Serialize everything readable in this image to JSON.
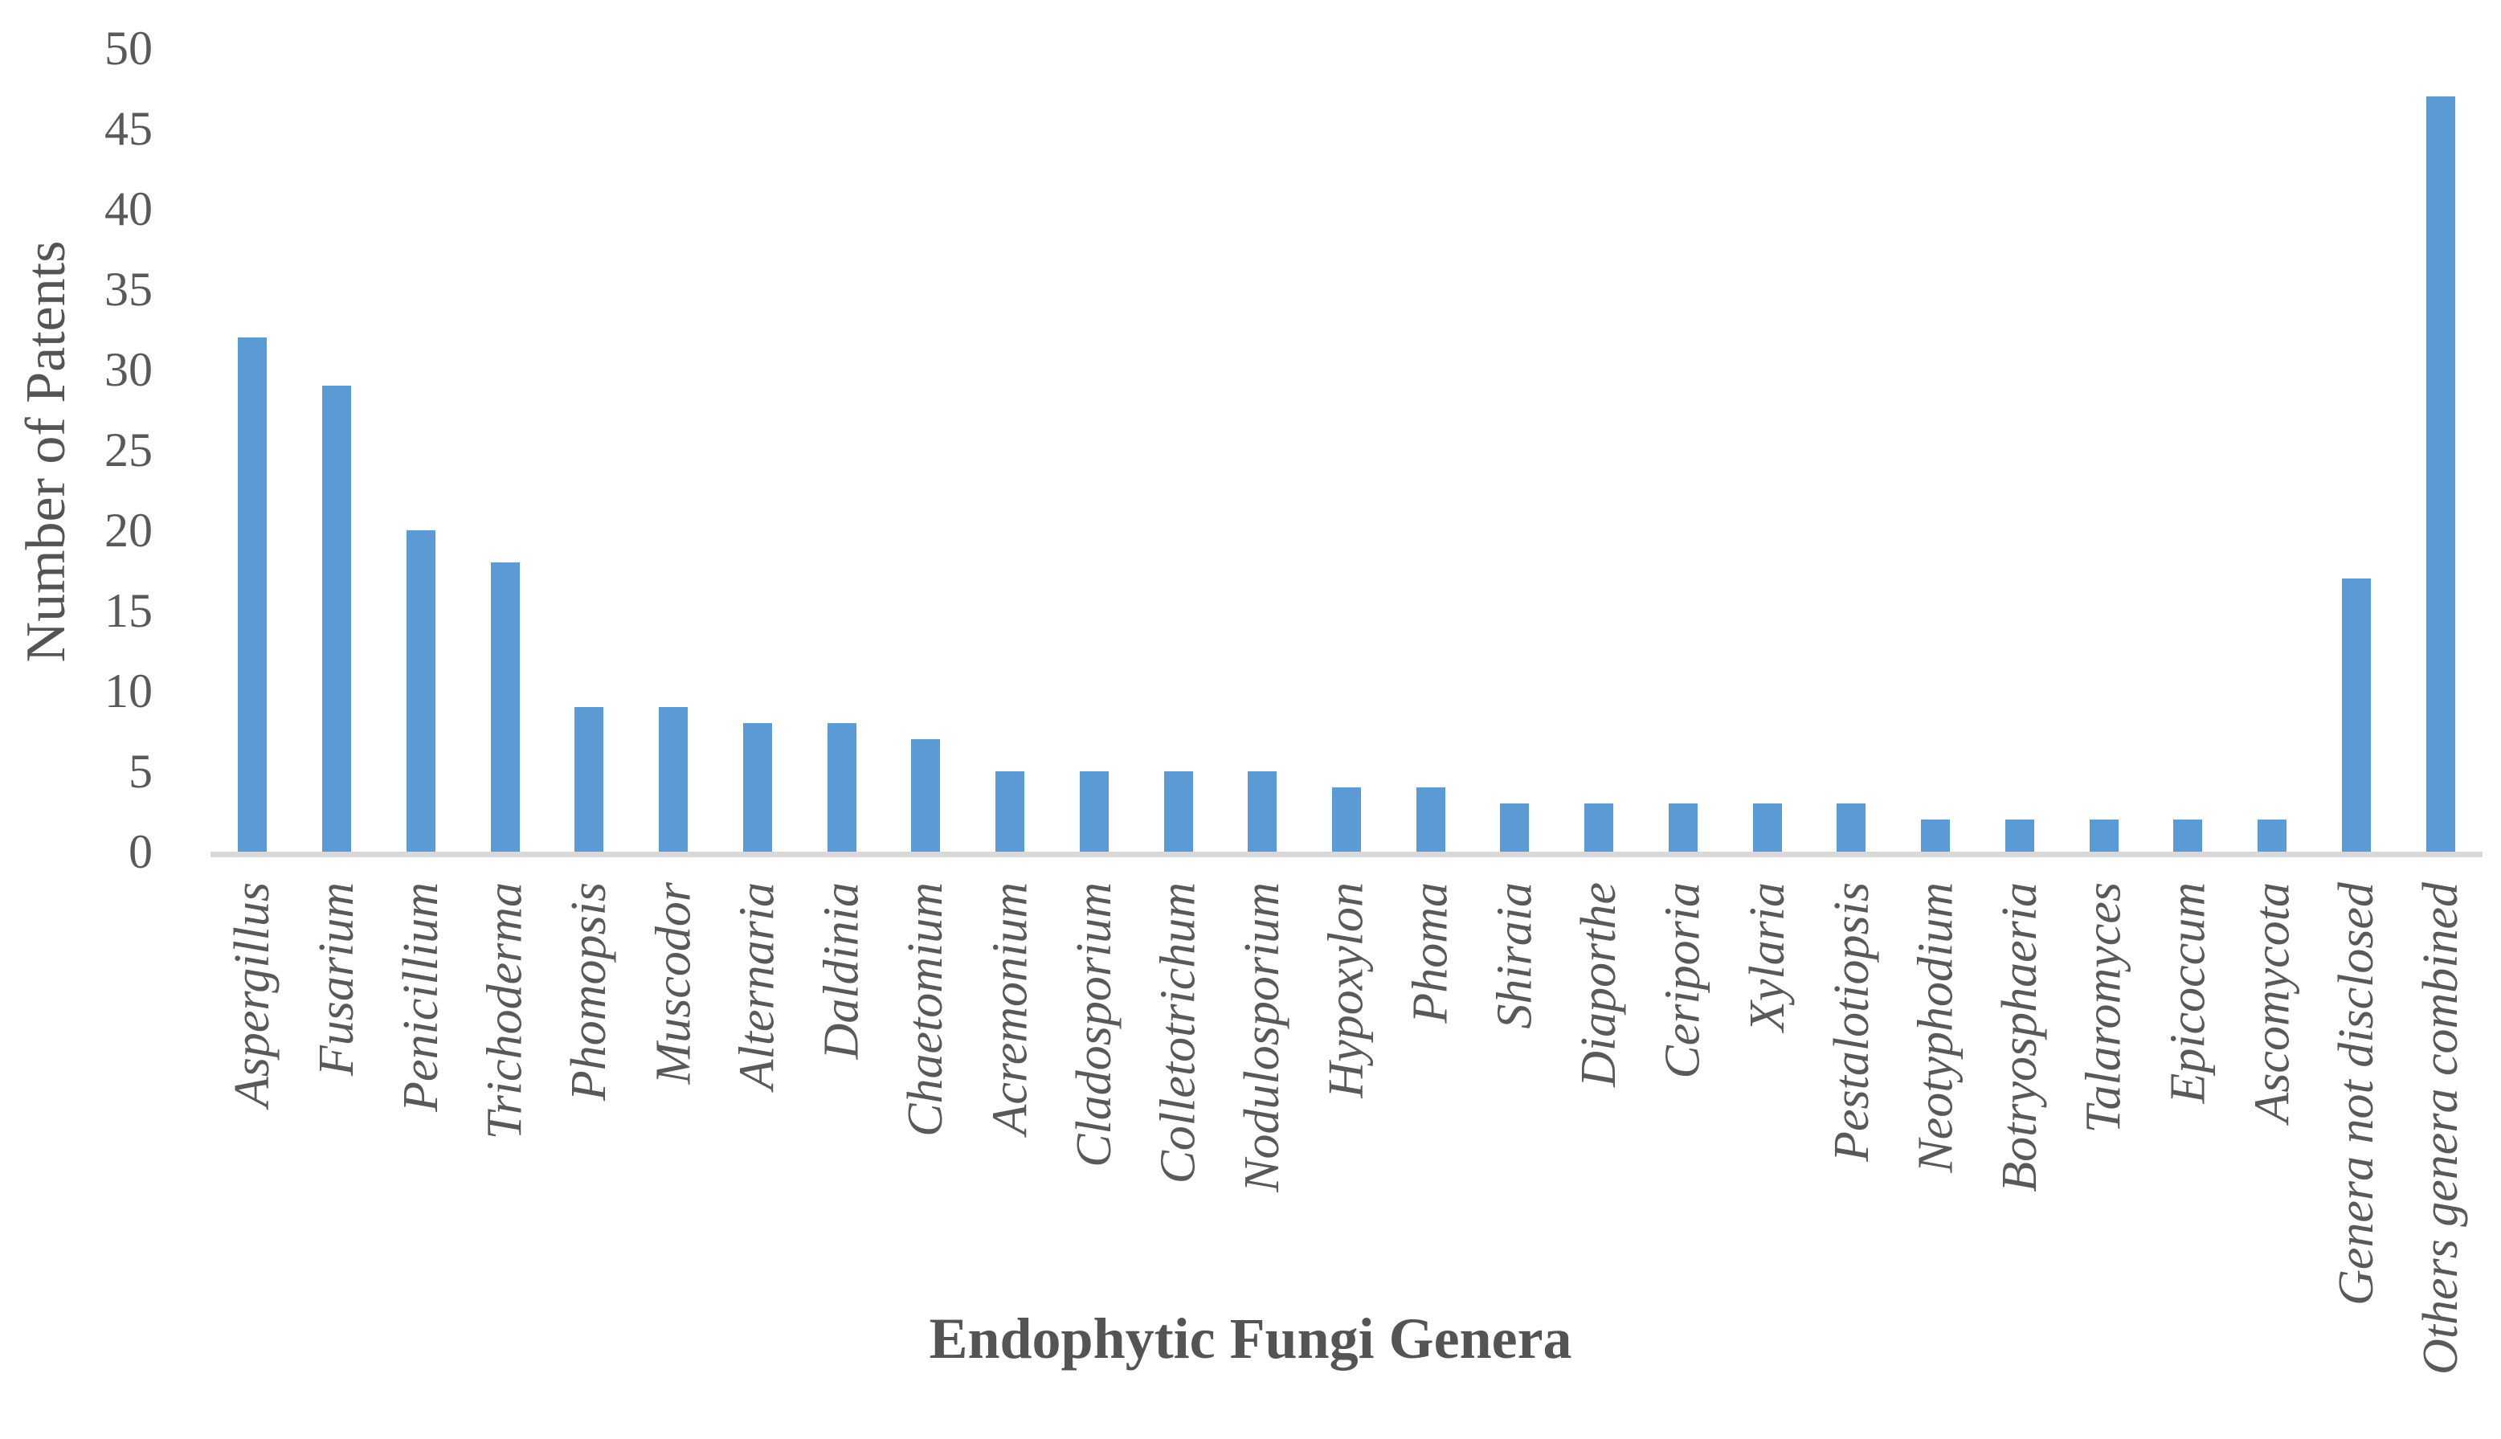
{
  "chart_data": {
    "type": "bar",
    "title": "",
    "xlabel": "Endophytic Fungi Genera",
    "ylabel": "Number of Patents",
    "categories": [
      "Aspergillus",
      "Fusarium",
      "Penicillium",
      "Trichoderma",
      "Phomopsis",
      "Muscodor",
      "Alternaria",
      "Daldinia",
      "Chaetomium",
      "Acremonium",
      "Cladosporium",
      "Colletotrichum",
      "Nodulosporium",
      "Hypoxylon",
      "Phoma",
      "Shiraia",
      "Diaporthe",
      "Ceriporia",
      "Xylaria",
      "Pestalotiopsis",
      "Neotyphodium",
      "Botryosphaeria",
      "Talaromyces",
      "Epicoccum",
      "Ascomycota",
      "Genera not disclosed",
      "Others genera combined"
    ],
    "values": [
      32,
      29,
      20,
      18,
      9,
      9,
      8,
      8,
      7,
      5,
      5,
      5,
      5,
      4,
      4,
      3,
      3,
      3,
      3,
      3,
      2,
      2,
      2,
      2,
      2,
      17,
      47
    ],
    "ylim": [
      0,
      50
    ],
    "yticks": [
      0,
      5,
      10,
      15,
      20,
      25,
      30,
      35,
      40,
      45,
      50
    ],
    "grid": "off",
    "legend": "none",
    "category_label_rotation_deg": 90,
    "colors": {
      "bar": "#5B9BD5",
      "axis_line": "#D9D9D9",
      "tick_labels": "#595959",
      "axis_titles": "#545454"
    }
  }
}
